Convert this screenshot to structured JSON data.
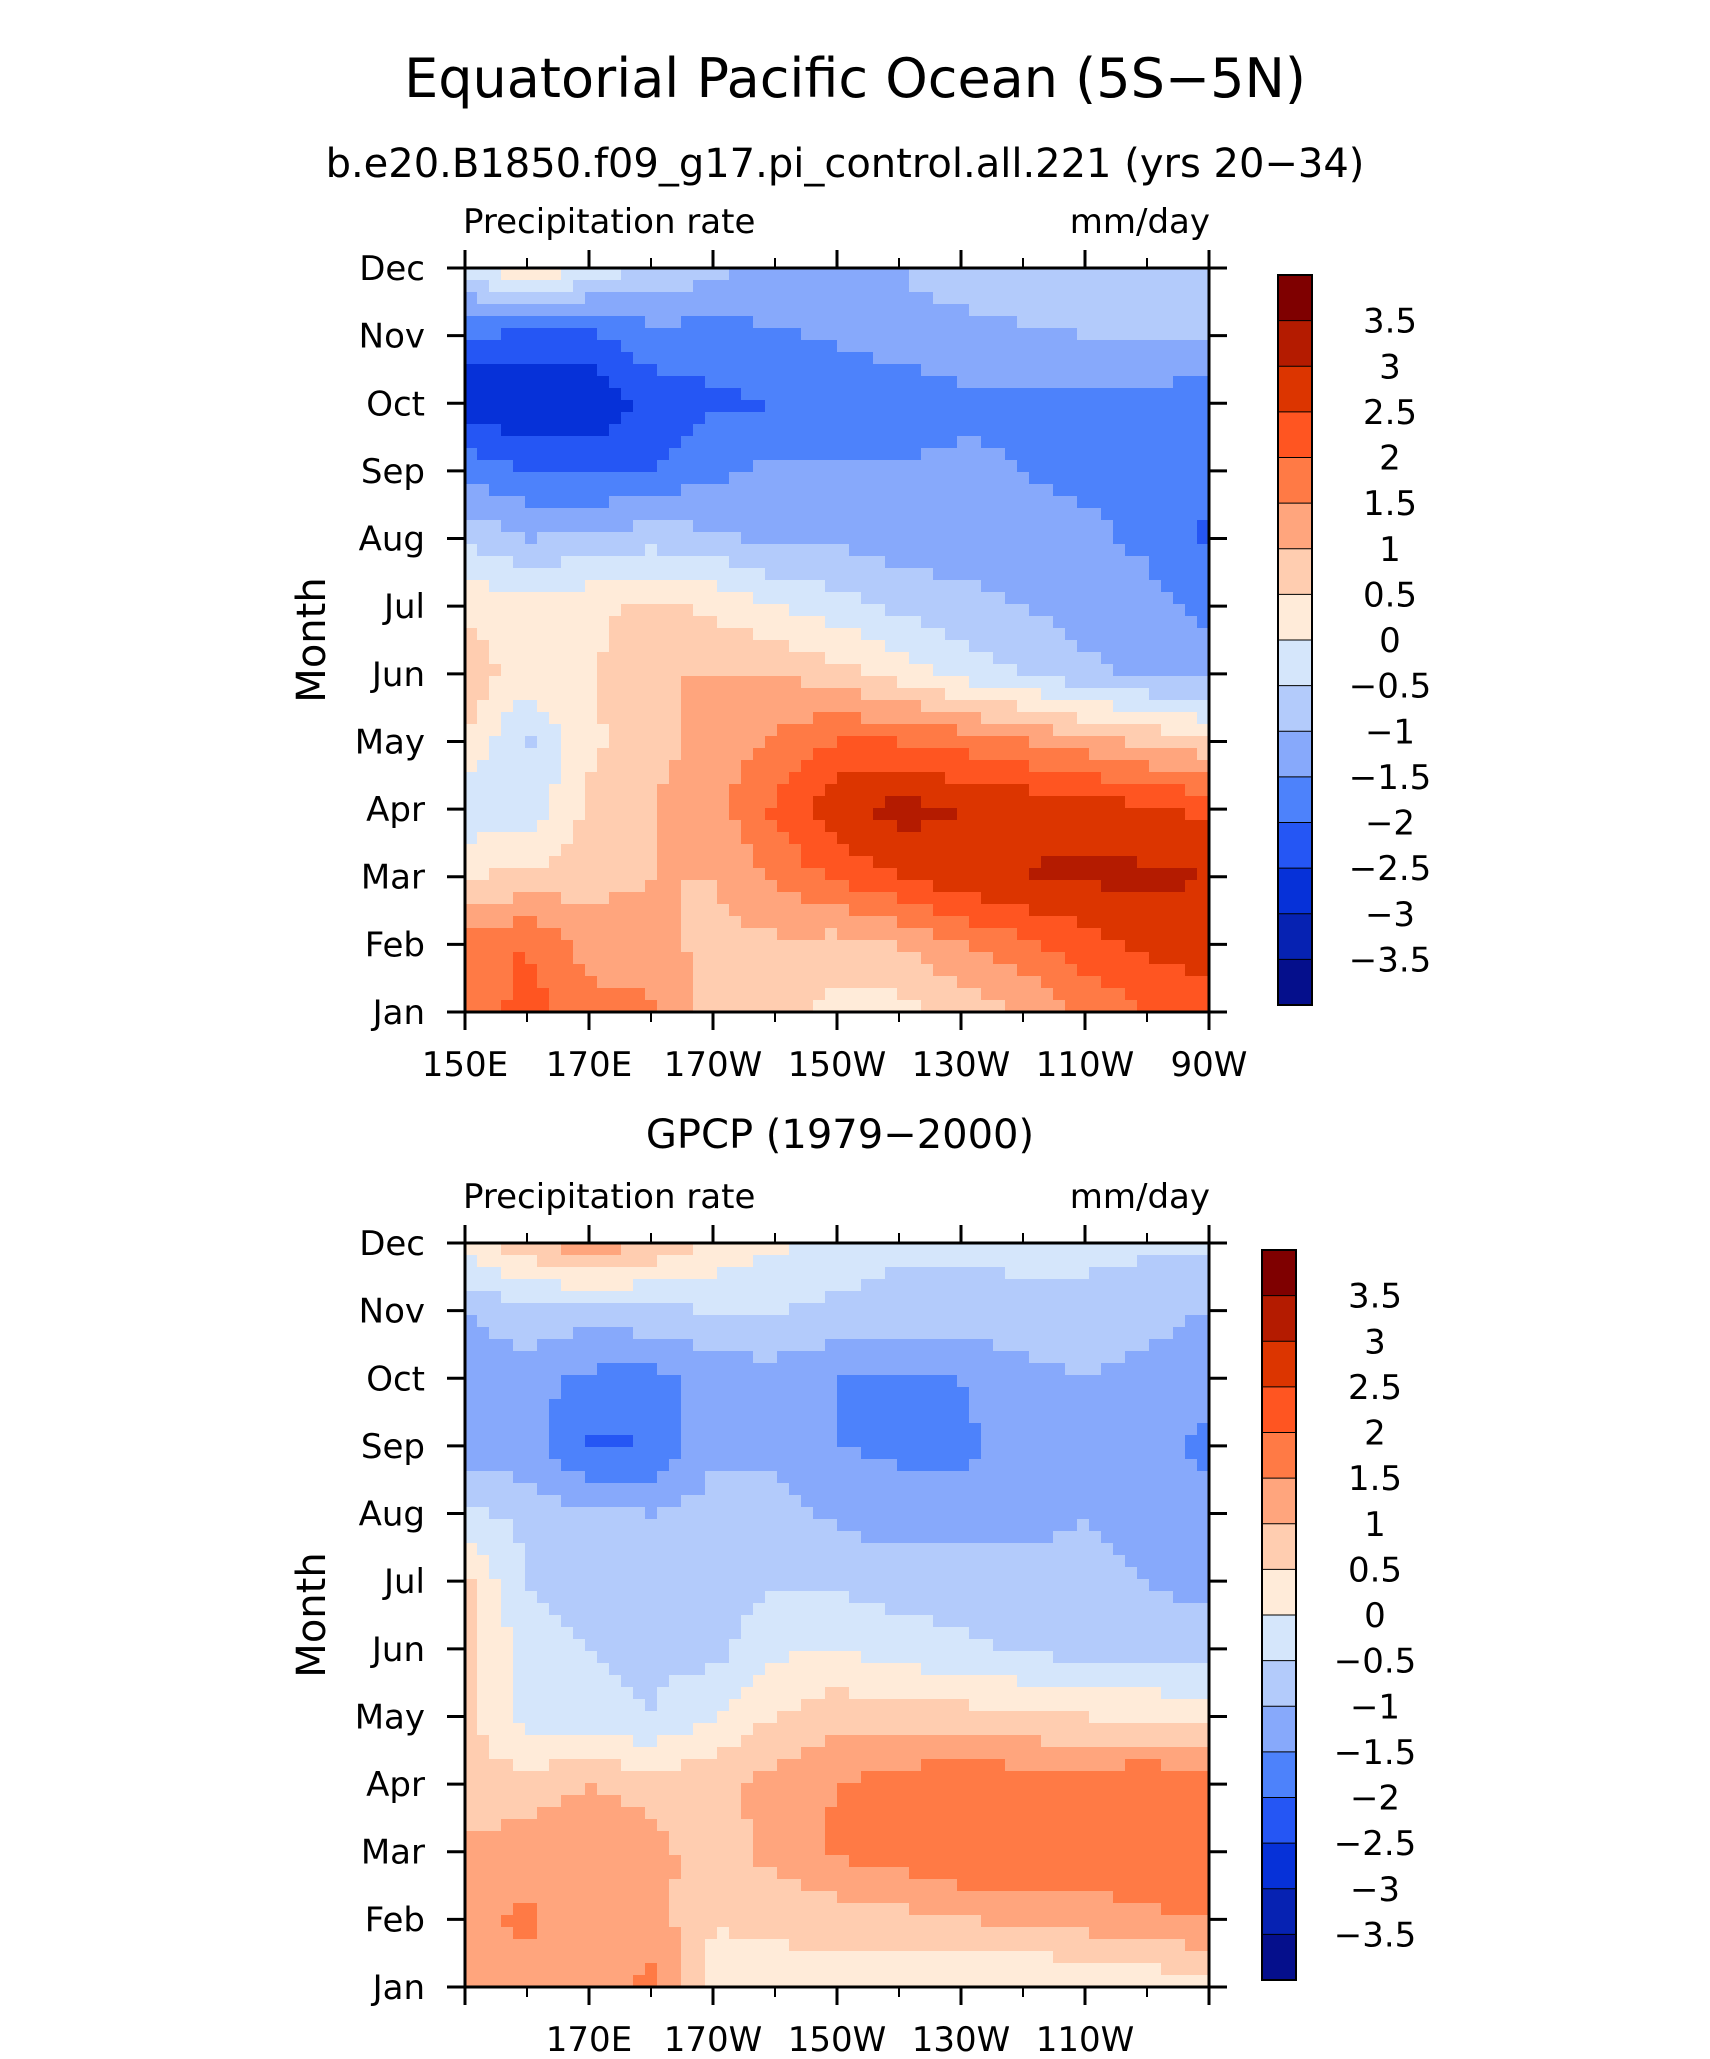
{
  "figure": {
    "title": "Equatorial Pacific Ocean (5S−5N)",
    "subtitle": "b.e20.B1850.f09_g17.pi_control.all.221 (yrs 20−34)"
  },
  "colorbar": {
    "labels": [
      "3.5",
      "3",
      "2.5",
      "2",
      "1.5",
      "1",
      "0.5",
      "0",
      "−0.5",
      "−1",
      "−1.5",
      "−2",
      "−2.5",
      "−3",
      "−3.5"
    ],
    "colors": [
      "#7f0000",
      "#b41b00",
      "#dc3500",
      "#ff5521",
      "#ff7a45",
      "#ffa57d",
      "#ffcdb0",
      "#ffebd9",
      "#d5e6fb",
      "#b3cbfb",
      "#87a9fb",
      "#4d82fb",
      "#2556f4",
      "#0631d8",
      "#0622b2",
      "#050f8c"
    ]
  },
  "chart_data": [
    {
      "type": "heatmap",
      "title": "",
      "left_label": "Precipitation rate",
      "right_label": "mm/day",
      "ylabel": "Month",
      "xlabel": "",
      "x_tick_labels": [
        "150E",
        "170E",
        "170W",
        "150W",
        "130W",
        "110W",
        "90W"
      ],
      "y_tick_labels": [
        "Jan",
        "Feb",
        "Mar",
        "Apr",
        "May",
        "Jun",
        "Jul",
        "Aug",
        "Sep",
        "Oct",
        "Nov",
        "Dec"
      ],
      "x": [
        150,
        160,
        170,
        180,
        190,
        200,
        210,
        220,
        230,
        240,
        250,
        260,
        270
      ],
      "y": [
        "Jan",
        "Feb",
        "Mar",
        "Apr",
        "May",
        "Jun",
        "Jul",
        "Aug",
        "Sep",
        "Oct",
        "Nov",
        "Dec"
      ],
      "units": "mm/day",
      "values": [
        [
          1.6,
          2.2,
          1.7,
          1.6,
          0.8,
          0.7,
          0.3,
          0.3,
          0.6,
          1.0,
          1.6,
          2.0,
          2.3
        ],
        [
          1.8,
          2.0,
          1.3,
          1.2,
          0.8,
          0.9,
          0.8,
          1.0,
          1.5,
          1.9,
          2.3,
          2.6,
          2.8
        ],
        [
          0.5,
          0.6,
          0.8,
          1.0,
          1.0,
          1.6,
          2.1,
          2.5,
          2.8,
          3.0,
          3.1,
          3.1,
          3.0
        ],
        [
          -0.4,
          -0.3,
          0.6,
          1.0,
          1.3,
          2.1,
          2.9,
          3.2,
          3.0,
          2.9,
          2.8,
          2.6,
          2.4
        ],
        [
          0.5,
          -0.6,
          0.4,
          0.8,
          1.2,
          1.6,
          2.0,
          2.0,
          1.8,
          1.5,
          1.2,
          0.9,
          0.6
        ],
        [
          0.8,
          0.3,
          0.4,
          1.0,
          1.0,
          1.0,
          0.7,
          0.3,
          -0.2,
          -0.5,
          -0.9,
          -1.1,
          -1.2
        ],
        [
          0.4,
          0.2,
          0.4,
          0.6,
          0.4,
          0.0,
          -0.3,
          -0.6,
          -0.8,
          -1.0,
          -1.2,
          -1.3,
          -1.7
        ],
        [
          -0.6,
          -1.0,
          -0.9,
          -0.7,
          -0.9,
          -1.1,
          -1.1,
          -1.3,
          -1.3,
          -1.4,
          -1.4,
          -1.6,
          -2.1
        ],
        [
          -1.6,
          -2.0,
          -2.1,
          -2.0,
          -1.6,
          -1.4,
          -1.4,
          -1.4,
          -1.4,
          -1.5,
          -1.6,
          -1.6,
          -1.9
        ],
        [
          -3.0,
          -2.9,
          -3.0,
          -2.3,
          -2.1,
          -2.0,
          -2.0,
          -1.9,
          -1.6,
          -1.6,
          -1.6,
          -1.6,
          -1.9
        ],
        [
          -2.0,
          -2.1,
          -2.1,
          -1.7,
          -1.7,
          -1.6,
          -1.4,
          -1.2,
          -1.2,
          -1.1,
          -1.0,
          -1.0,
          -0.9
        ],
        [
          -0.3,
          0.6,
          -0.2,
          -0.5,
          -0.9,
          -1.0,
          -1.2,
          -1.0,
          -0.7,
          -0.6,
          -0.6,
          -0.6,
          -0.6
        ]
      ],
      "contour_levels": [
        -3.5,
        -3,
        -2.5,
        -2,
        -1.5,
        -1,
        -0.5,
        0,
        0.5,
        1,
        1.5,
        2,
        2.5,
        3,
        3.5
      ],
      "colorbar_labels": [
        "3.5",
        "3",
        "2.5",
        "2",
        "1.5",
        "1",
        "0.5",
        "0",
        "−0.5",
        "−1",
        "−1.5",
        "−2",
        "−2.5",
        "−3",
        "−3.5"
      ]
    },
    {
      "type": "heatmap",
      "title": "GPCP (1979−2000)",
      "left_label": "Precipitation rate",
      "right_label": "mm/day",
      "ylabel": "Month",
      "xlabel": "",
      "x_tick_labels": [
        "",
        "170E",
        "170W",
        "150W",
        "130W",
        "110W",
        ""
      ],
      "y_tick_labels": [
        "Jan",
        "Feb",
        "Mar",
        "Apr",
        "May",
        "Jun",
        "Jul",
        "Aug",
        "Sep",
        "Oct",
        "Nov",
        "Dec"
      ],
      "x": [
        150,
        160,
        170,
        180,
        190,
        200,
        210,
        220,
        230,
        240,
        250,
        260,
        270
      ],
      "y": [
        "Jan",
        "Feb",
        "Mar",
        "Apr",
        "May",
        "Jun",
        "Jul",
        "Aug",
        "Sep",
        "Oct",
        "Nov",
        "Dec"
      ],
      "units": "mm/day",
      "values": [
        [
          1.2,
          1.3,
          1.3,
          1.6,
          0.4,
          0.3,
          0.3,
          0.2,
          0.1,
          -0.1,
          0.1,
          0.1,
          0.3
        ],
        [
          1.4,
          1.6,
          1.2,
          1.3,
          0.5,
          0.6,
          0.7,
          0.8,
          1.0,
          1.1,
          1.2,
          1.4,
          1.5
        ],
        [
          1.1,
          1.3,
          1.5,
          1.2,
          0.7,
          1.2,
          1.6,
          1.8,
          2.0,
          1.9,
          1.8,
          2.0,
          1.8
        ],
        [
          0.6,
          0.7,
          1.0,
          0.8,
          0.8,
          1.2,
          1.5,
          1.7,
          2.0,
          1.8,
          1.7,
          2.0,
          1.8
        ],
        [
          0.7,
          -0.2,
          -0.4,
          -0.5,
          0.0,
          0.5,
          0.8,
          0.8,
          0.7,
          0.6,
          0.5,
          0.4,
          0.3
        ],
        [
          0.8,
          -0.3,
          -0.5,
          -0.6,
          -0.7,
          -0.1,
          0.0,
          -0.3,
          -0.4,
          -0.6,
          -0.7,
          -0.7,
          -0.7
        ],
        [
          0.6,
          -0.5,
          -0.8,
          -0.8,
          -0.6,
          -0.6,
          -0.6,
          -0.7,
          -0.7,
          -0.8,
          -0.8,
          -1.0,
          -1.2
        ],
        [
          -0.3,
          -0.7,
          -0.9,
          -1.0,
          -0.8,
          -0.8,
          -1.1,
          -1.3,
          -1.3,
          -1.2,
          -1.0,
          -1.3,
          -1.4
        ],
        [
          -1.4,
          -1.3,
          -2.1,
          -2.0,
          -1.1,
          -1.1,
          -1.5,
          -1.6,
          -1.6,
          -1.3,
          -1.0,
          -1.4,
          -1.6
        ],
        [
          -1.3,
          -1.3,
          -1.6,
          -1.7,
          -1.3,
          -1.2,
          -1.5,
          -1.6,
          -1.5,
          -1.2,
          -1.0,
          -1.2,
          -1.4
        ],
        [
          -1.0,
          -0.6,
          -0.8,
          -0.6,
          -0.5,
          -0.5,
          -0.6,
          -0.7,
          -0.7,
          -0.6,
          -0.6,
          -0.8,
          -1.0
        ],
        [
          0.3,
          0.8,
          1.5,
          0.9,
          0.4,
          0.1,
          -0.2,
          -0.4,
          -0.4,
          -0.4,
          -0.4,
          -0.4,
          -0.4
        ]
      ],
      "contour_levels": [
        -3.5,
        -3,
        -2.5,
        -2,
        -1.5,
        -1,
        -0.5,
        0,
        0.5,
        1,
        1.5,
        2,
        2.5,
        3,
        3.5
      ],
      "colorbar_labels": [
        "3.5",
        "3",
        "2.5",
        "2",
        "1.5",
        "1",
        "0.5",
        "0",
        "−0.5",
        "−1",
        "−1.5",
        "−2",
        "−2.5",
        "−3",
        "−3.5"
      ]
    }
  ]
}
